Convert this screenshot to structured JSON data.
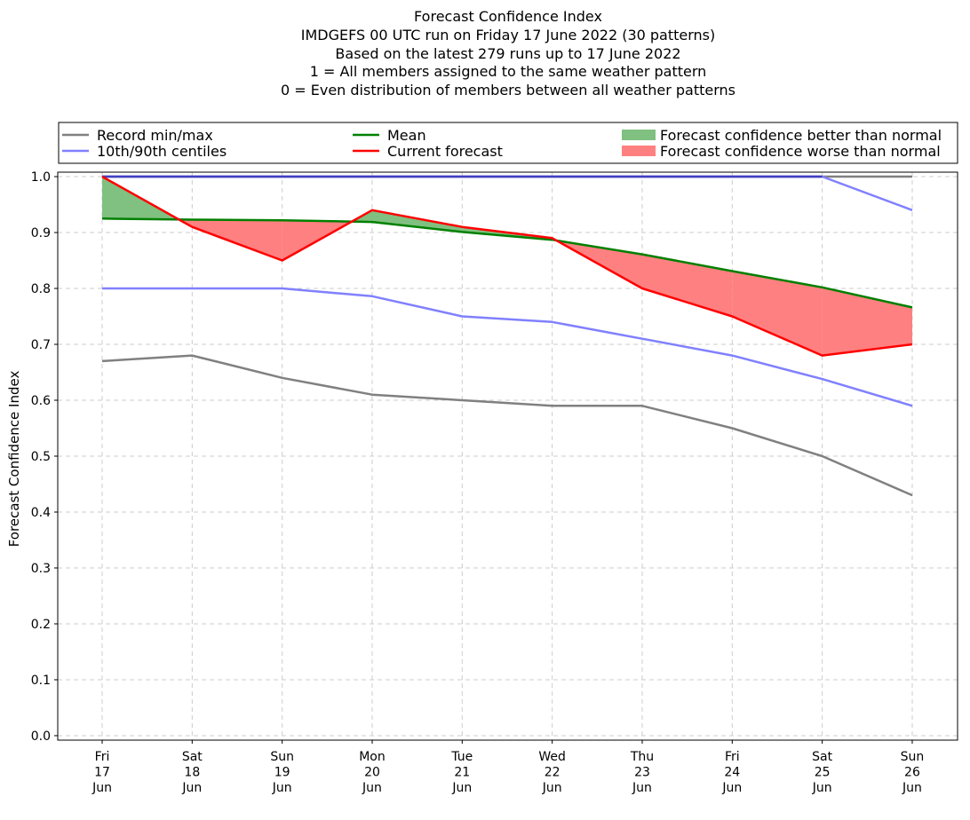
{
  "chart_data": {
    "type": "line",
    "title_lines": [
      "Forecast Confidence Index",
      "IMDGEFS 00 UTC run on Friday 17 June 2022 (30 patterns)",
      "Based on the latest 279 runs up to 17 June 2022",
      "1 = All members assigned to the same weather pattern",
      "0 = Even distribution of members between all weather patterns"
    ],
    "xlabel": "",
    "ylabel": "Forecast Confidence Index",
    "categories": [
      [
        "Fri",
        "17",
        "Jun"
      ],
      [
        "Sat",
        "18",
        "Jun"
      ],
      [
        "Sun",
        "19",
        "Jun"
      ],
      [
        "Mon",
        "20",
        "Jun"
      ],
      [
        "Tue",
        "21",
        "Jun"
      ],
      [
        "Wed",
        "22",
        "Jun"
      ],
      [
        "Thu",
        "23",
        "Jun"
      ],
      [
        "Fri",
        "24",
        "Jun"
      ],
      [
        "Sat",
        "25",
        "Jun"
      ],
      [
        "Sun",
        "26",
        "Jun"
      ]
    ],
    "yticks": [
      "0.0",
      "0.1",
      "0.2",
      "0.3",
      "0.4",
      "0.5",
      "0.6",
      "0.7",
      "0.8",
      "0.9",
      "1.0"
    ],
    "ylim": [
      -0.008,
      1.008
    ],
    "grid": true,
    "series": {
      "record_min": [
        0.67,
        0.68,
        0.64,
        0.61,
        0.6,
        0.59,
        0.59,
        0.55,
        0.5,
        0.43
      ],
      "record_max": [
        1.0,
        1.0,
        1.0,
        1.0,
        1.0,
        1.0,
        1.0,
        1.0,
        1.0,
        1.0
      ],
      "centile_10": [
        0.8,
        0.8,
        0.8,
        0.786,
        0.75,
        0.74,
        0.71,
        0.68,
        0.638,
        0.59
      ],
      "centile_90": [
        1.0,
        1.0,
        1.0,
        1.0,
        1.0,
        1.0,
        1.0,
        1.0,
        1.0,
        0.94
      ],
      "mean": [
        0.925,
        0.923,
        0.922,
        0.919,
        0.901,
        0.887,
        0.861,
        0.831,
        0.802,
        0.766
      ],
      "current": [
        1.0,
        0.91,
        0.85,
        0.94,
        0.91,
        0.89,
        0.8,
        0.75,
        0.68,
        0.7
      ]
    },
    "legend": {
      "placement": "top",
      "items": [
        {
          "label": "Record min/max",
          "kind": "line",
          "color": "#808080"
        },
        {
          "label": "10th/90th centiles",
          "kind": "line",
          "color": "#8080ff"
        },
        {
          "label": "Mean",
          "kind": "line",
          "color": "#008000"
        },
        {
          "label": "Current forecast",
          "kind": "line",
          "color": "#ff0000"
        },
        {
          "label": "Forecast confidence better than normal",
          "kind": "patch",
          "color": "#80c080"
        },
        {
          "label": "Forecast confidence worse than normal",
          "kind": "patch",
          "color": "#ff8080"
        }
      ]
    },
    "colors": {
      "record": "#808080",
      "centile": "#8080ff",
      "overlap": "#4040c0",
      "mean": "#008000",
      "current": "#ff0000",
      "better": "#80c080",
      "worse": "#ff8080",
      "grid": "#cccccc"
    }
  }
}
